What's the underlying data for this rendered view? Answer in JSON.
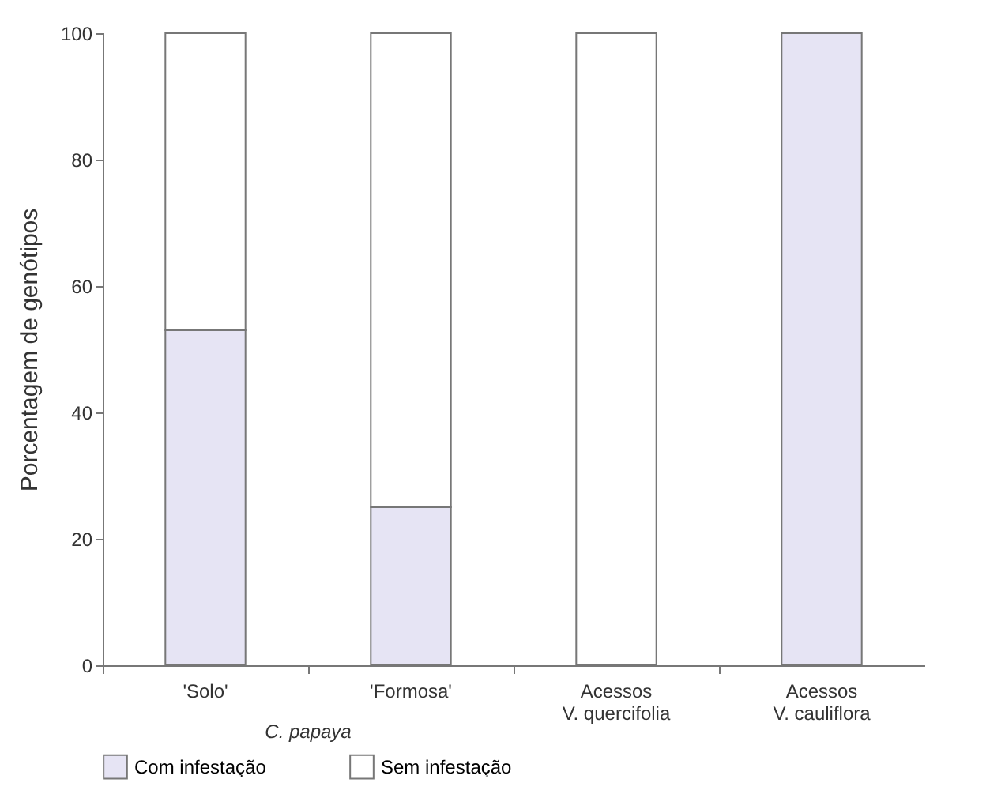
{
  "chart_data": {
    "type": "bar",
    "ylabel": "Porcentagem de genótipos",
    "categories": [
      "'Solo'",
      "'Formosa'",
      "Acessos\nV. quercifolia",
      "Acessos\nV. cauliflora"
    ],
    "series": [
      {
        "name": "Com infestação",
        "color": "#e6e4f4",
        "values": [
          53,
          25,
          0,
          100
        ]
      },
      {
        "name": "Sem infestação",
        "color": "#ffffff",
        "values": [
          47,
          75,
          100,
          0
        ]
      }
    ],
    "stacked": true,
    "ylim": [
      0,
      100
    ],
    "yticks": [
      0,
      20,
      40,
      60,
      80,
      100
    ],
    "grid": false,
    "legend": "bottom",
    "annotations": [
      "C. papaya"
    ]
  }
}
